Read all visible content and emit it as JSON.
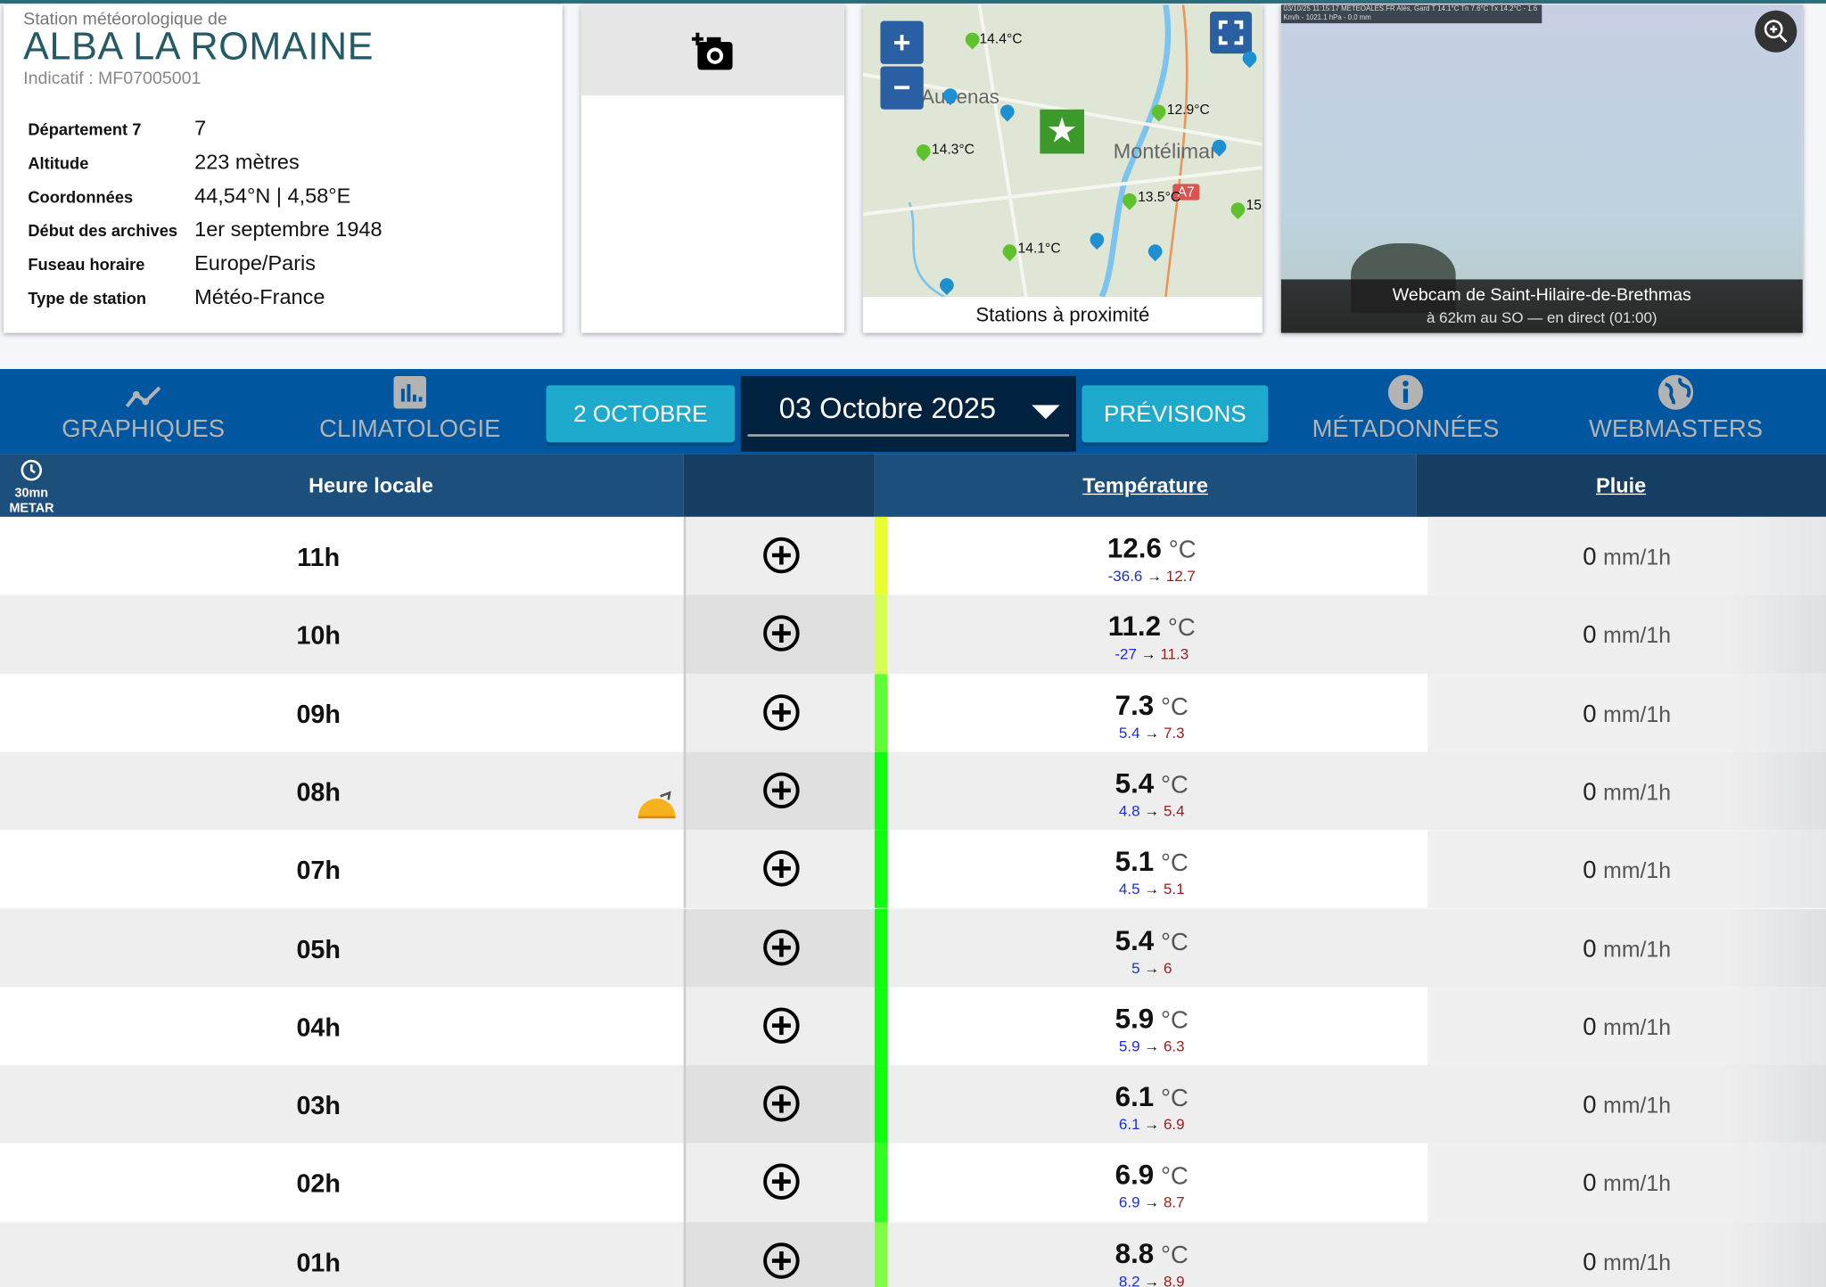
{
  "station": {
    "subtitle": "Station météorologique de",
    "name": "ALBA LA ROMAINE",
    "indicatif": "Indicatif : MF07005001",
    "fields": [
      {
        "label": "Département 7",
        "value": "7"
      },
      {
        "label": "Altitude",
        "value": "223 mètres"
      },
      {
        "label": "Coordonnées",
        "value": "44,54°N | 4,58°E"
      },
      {
        "label": "Début des archives",
        "value": "1er septembre 1948"
      },
      {
        "label": "Fuseau horaire",
        "value": "Europe/Paris"
      },
      {
        "label": "Type de station",
        "value": "Météo-France"
      }
    ]
  },
  "photo": {
    "icon": "add-photo-icon"
  },
  "map": {
    "caption": "Stations à proximité",
    "zoom_in": "+",
    "zoom_out": "−",
    "labels": {
      "l1": "14.4°C",
      "l2": "12.9°C",
      "l3": "14.3°C",
      "l4": "13.5°C",
      "l5": "15",
      "l6": "14.1°C",
      "city1": "Aubenas",
      "city2": "Montélimar",
      "road": "A7"
    }
  },
  "webcam": {
    "overlay": "03/10/25 11:15:17 METEOALES.FR  Alès, Gard  T 14.1°C Tn 7.6°C Tx 14.2°C - 1.6 Km/h - 1021.1 hPa - 0.0 mm",
    "title": "Webcam de Saint-Hilaire-de-Brethmas",
    "subtitle": "à 62km au SO — en direct (01:00)"
  },
  "nav": {
    "graphiques": "GRAPHIQUES",
    "climatologie": "CLIMATOLOGIE",
    "prev_day": "2 OCTOBRE",
    "date": "03 Octobre 2025",
    "previsions": "PRÉVISIONS",
    "metadonnees": "MÉTADONNÉES",
    "webmasters": "WEBMASTERS"
  },
  "table": {
    "interval": "30mn",
    "source": "METAR",
    "headers": {
      "time": "Heure locale",
      "temp": "Température",
      "rain": "Pluie"
    },
    "temp_unit": "°C",
    "rain_unit": "mm/1h",
    "rows": [
      {
        "time": "11h",
        "temp": "12.6",
        "min": "-36.6",
        "max": "12.7",
        "rain": "0",
        "color": "#e8ff30"
      },
      {
        "time": "10h",
        "temp": "11.2",
        "min": "-27",
        "max": "11.3",
        "rain": "0",
        "color": "#d6ff55"
      },
      {
        "time": "09h",
        "temp": "7.3",
        "min": "5.4",
        "max": "7.3",
        "rain": "0",
        "color": "#60ff35"
      },
      {
        "time": "08h",
        "temp": "5.4",
        "min": "4.8",
        "max": "5.4",
        "rain": "0",
        "color": "#10ff10",
        "sunrise": true
      },
      {
        "time": "07h",
        "temp": "5.1",
        "min": "4.5",
        "max": "5.1",
        "rain": "0",
        "color": "#10ff10"
      },
      {
        "time": "05h",
        "temp": "5.4",
        "min": "5",
        "max": "6",
        "rain": "0",
        "color": "#10ff10"
      },
      {
        "time": "04h",
        "temp": "5.9",
        "min": "5.9",
        "max": "6.3",
        "rain": "0",
        "color": "#10ff10"
      },
      {
        "time": "03h",
        "temp": "6.1",
        "min": "6.1",
        "max": "6.9",
        "rain": "0",
        "color": "#10ff10"
      },
      {
        "time": "02h",
        "temp": "6.9",
        "min": "6.9",
        "max": "8.7",
        "rain": "0",
        "color": "#30ff20"
      },
      {
        "time": "01h",
        "temp": "8.8",
        "min": "8.2",
        "max": "8.9",
        "rain": "0",
        "color": "#80ff45"
      }
    ]
  }
}
